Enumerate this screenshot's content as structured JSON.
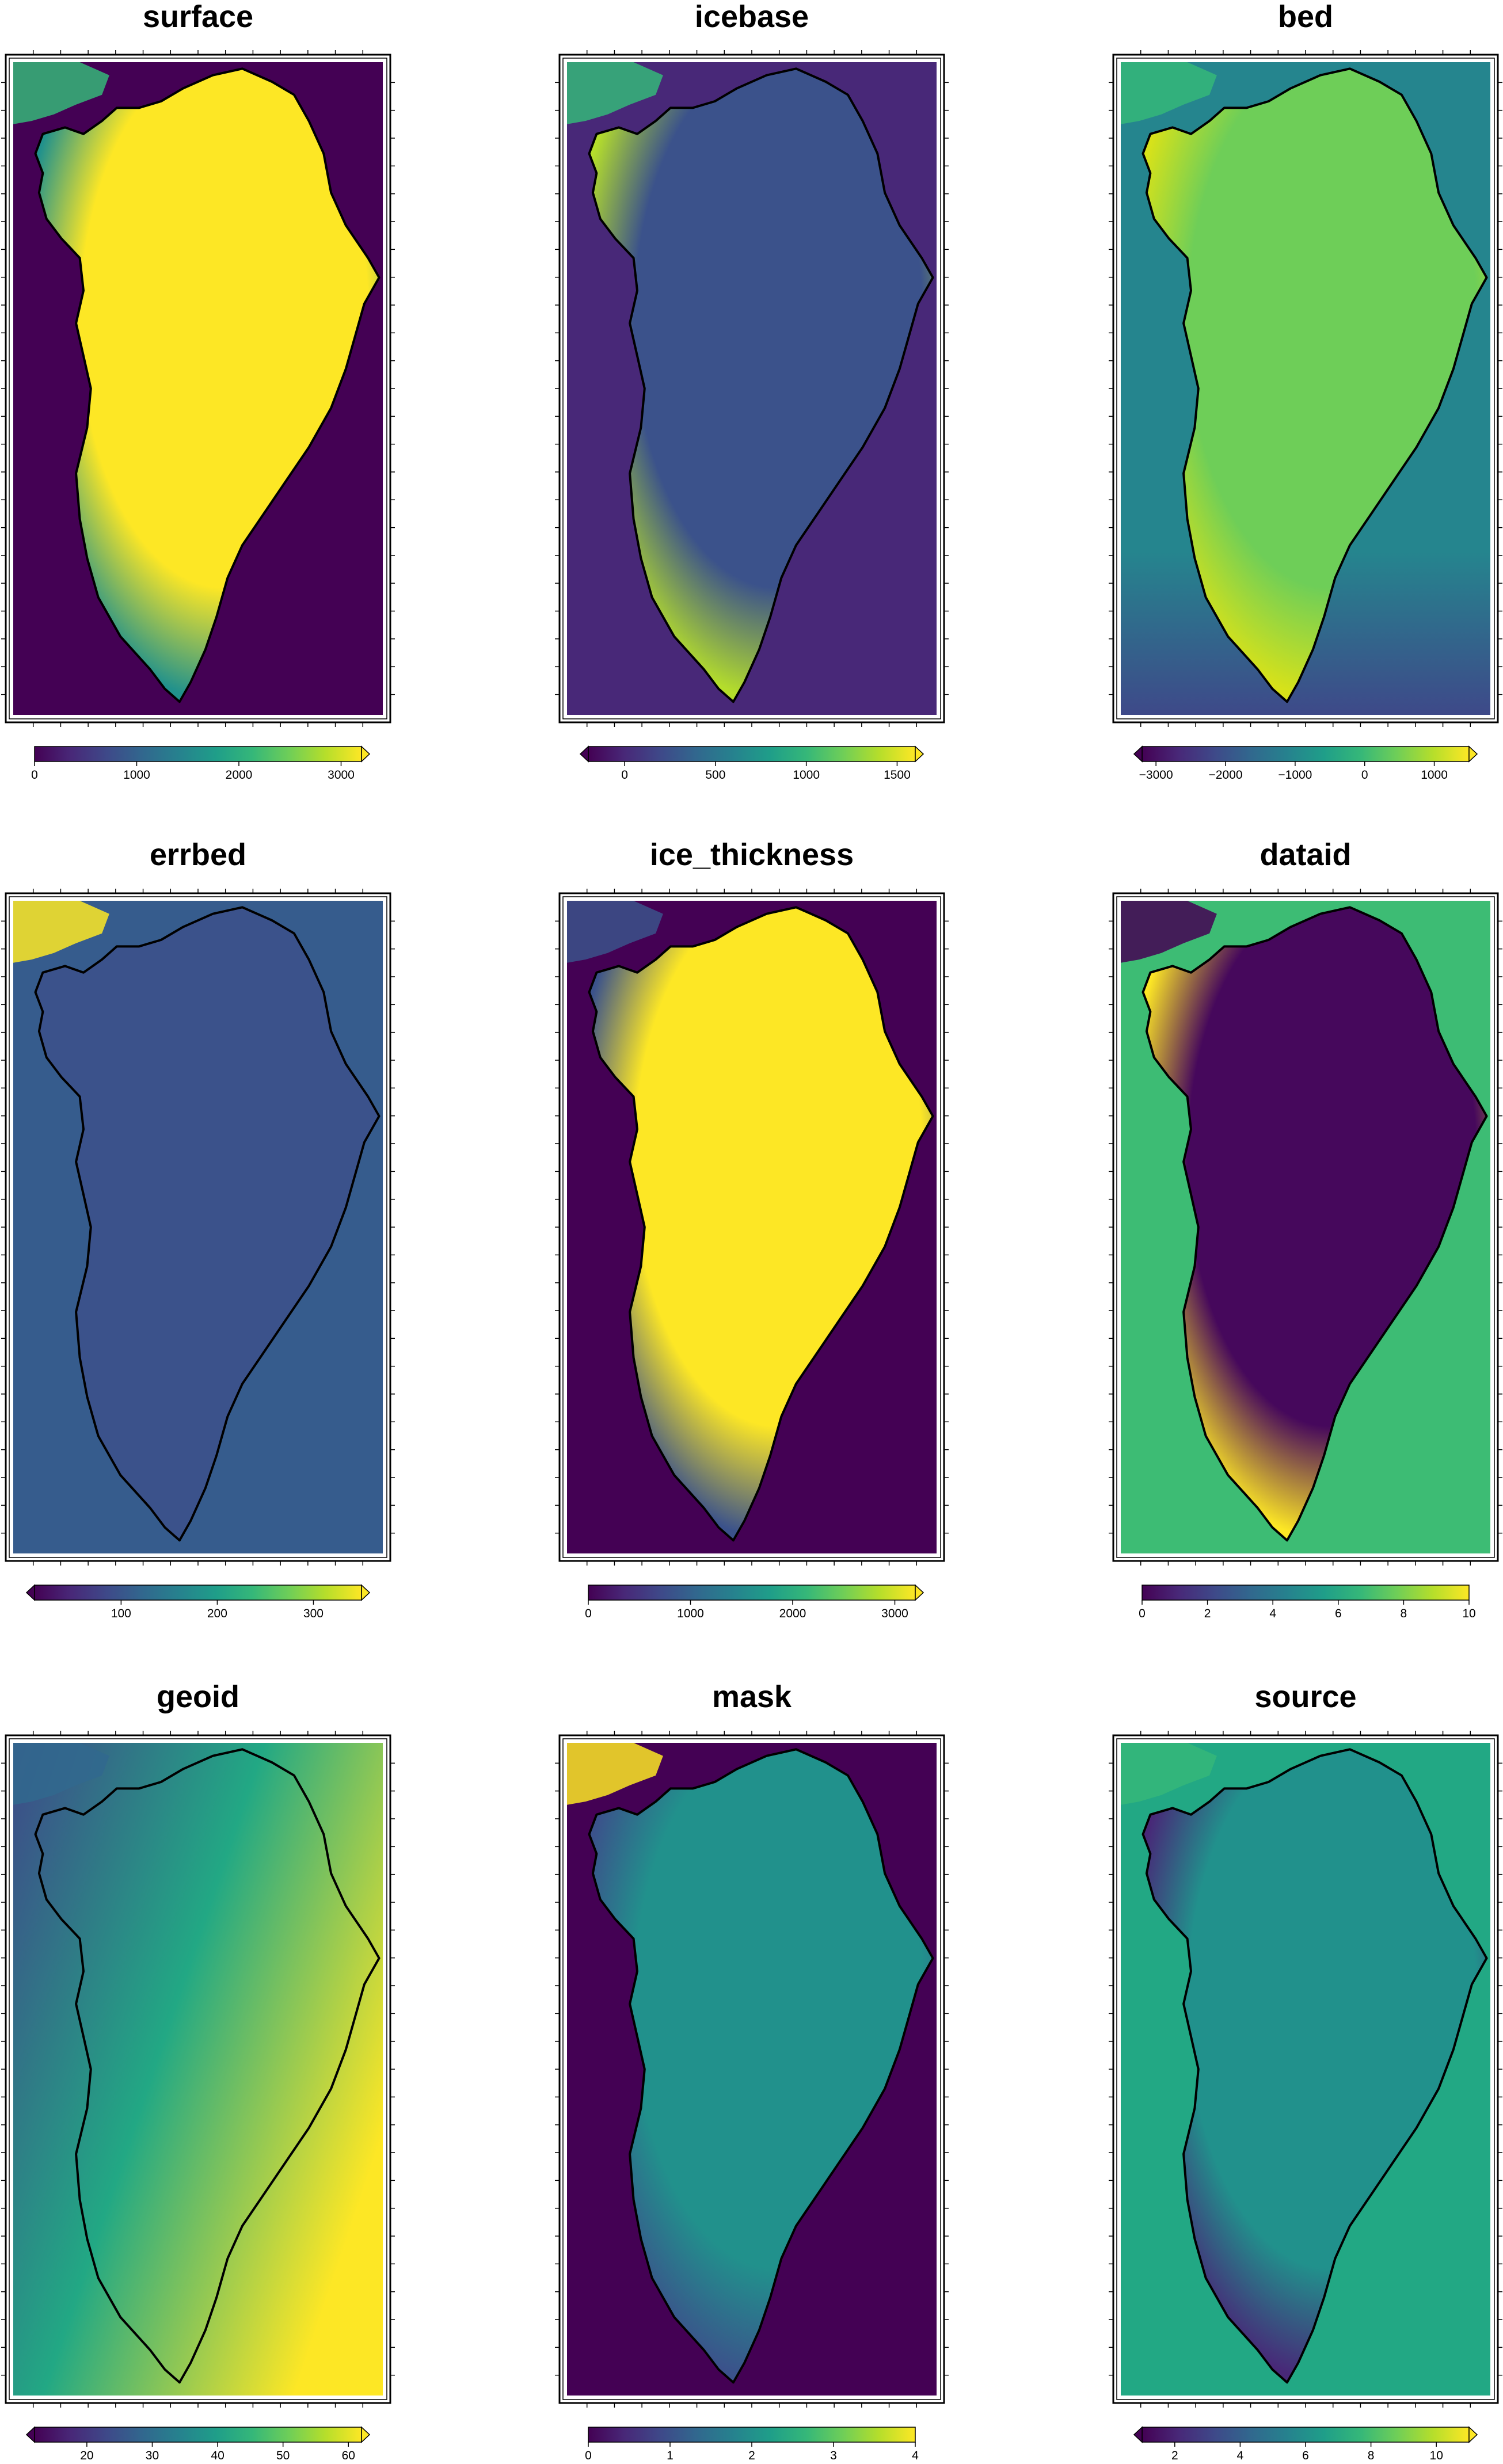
{
  "colormap": [
    "#440154",
    "#482878",
    "#3e4989",
    "#31688e",
    "#26828e",
    "#1f9e89",
    "#35b779",
    "#6ece58",
    "#b5de2b",
    "#fde725"
  ],
  "background_color": "#ffffff",
  "chart_data": [
    {
      "type": "heatmap",
      "title": "surface",
      "region": "Greenland",
      "colorbar": {
        "ticks": [
          0,
          1000,
          2000,
          3000
        ],
        "tick_labels": [
          "0",
          "1000",
          "2000",
          "3000"
        ],
        "range": [
          0,
          3200
        ],
        "extend": "max"
      },
      "appearance": {
        "ocean_color": "#440154",
        "land_low_color": "#21918c",
        "interior_color": "#fde725"
      }
    },
    {
      "type": "heatmap",
      "title": "icebase",
      "region": "Greenland",
      "colorbar": {
        "ticks": [
          0,
          500,
          1000,
          1500
        ],
        "tick_labels": [
          "0",
          "500",
          "1000",
          "1500"
        ],
        "range": [
          -200,
          1600
        ],
        "extend": "both"
      },
      "appearance": {
        "ocean_color": "#482878",
        "land_low_color": "#433e85",
        "interior_color": "#3b528b",
        "margin_color": "#b5de2b"
      }
    },
    {
      "type": "heatmap",
      "title": "bed",
      "region": "Greenland",
      "colorbar": {
        "ticks": [
          -3000,
          -2000,
          -1000,
          0,
          1000
        ],
        "tick_labels": [
          "−3000",
          "−2000",
          "−1000",
          "0",
          "1000"
        ],
        "range": [
          -3200,
          1500
        ],
        "extend": "both"
      },
      "appearance": {
        "ocean_color": "#25858e",
        "deep_ocean_color": "#3e4989",
        "interior_color": "#6ece58",
        "margin_color": "#d8e219"
      }
    },
    {
      "type": "heatmap",
      "title": "errbed",
      "region": "Greenland",
      "colorbar": {
        "ticks": [
          100,
          200,
          300
        ],
        "tick_labels": [
          "100",
          "200",
          "300"
        ],
        "range": [
          10,
          350
        ],
        "extend": "both"
      },
      "appearance": {
        "ocean_color": "#365c8d",
        "interior_color": "#3b528b",
        "track_color": "#fde725"
      }
    },
    {
      "type": "heatmap",
      "title": "ice_thickness",
      "region": "Greenland",
      "colorbar": {
        "ticks": [
          0,
          1000,
          2000,
          3000
        ],
        "tick_labels": [
          "0",
          "1000",
          "2000",
          "3000"
        ],
        "range": [
          0,
          3200
        ],
        "extend": "max"
      },
      "appearance": {
        "ocean_color": "#440154",
        "land_low_color": "#3b528b",
        "interior_color": "#fde725"
      }
    },
    {
      "type": "heatmap",
      "title": "dataid",
      "region": "Greenland",
      "colorbar": {
        "ticks": [
          0,
          2,
          4,
          6,
          8,
          10
        ],
        "tick_labels": [
          "0",
          "2",
          "4",
          "6",
          "8",
          "10"
        ],
        "range": [
          0,
          10
        ],
        "extend": "none"
      },
      "appearance": {
        "ocean_color": "#3dbc74",
        "interior_color": "#46085c",
        "margin_color": "#fde725"
      }
    },
    {
      "type": "heatmap",
      "title": "geoid",
      "region": "Greenland",
      "colorbar": {
        "ticks": [
          20,
          30,
          40,
          50,
          60
        ],
        "tick_labels": [
          "20",
          "30",
          "40",
          "50",
          "60"
        ],
        "range": [
          12,
          62
        ],
        "extend": "both"
      },
      "appearance": {
        "west_color": "#3e4989",
        "center_color": "#22a884",
        "east_color": "#fde725"
      }
    },
    {
      "type": "heatmap",
      "title": "mask",
      "region": "Greenland",
      "colorbar": {
        "ticks": [
          0,
          1,
          2,
          3,
          4
        ],
        "tick_labels": [
          "0",
          "1",
          "2",
          "3",
          "4"
        ],
        "range": [
          0,
          4
        ],
        "extend": "none"
      },
      "appearance": {
        "ocean_color": "#440154",
        "interior_color": "#21918c",
        "margin_color": "#3b528b",
        "ellesmere_color": "#fde725"
      }
    },
    {
      "type": "heatmap",
      "title": "source",
      "region": "Greenland",
      "colorbar": {
        "ticks": [
          2,
          4,
          6,
          8,
          10
        ],
        "tick_labels": [
          "2",
          "4",
          "6",
          "8",
          "10"
        ],
        "range": [
          1,
          11
        ],
        "extend": "both"
      },
      "appearance": {
        "ocean_color": "#22a884",
        "interior_color": "#21918c",
        "margin_color": "#482878",
        "highlight_color": "#fde725"
      }
    }
  ]
}
